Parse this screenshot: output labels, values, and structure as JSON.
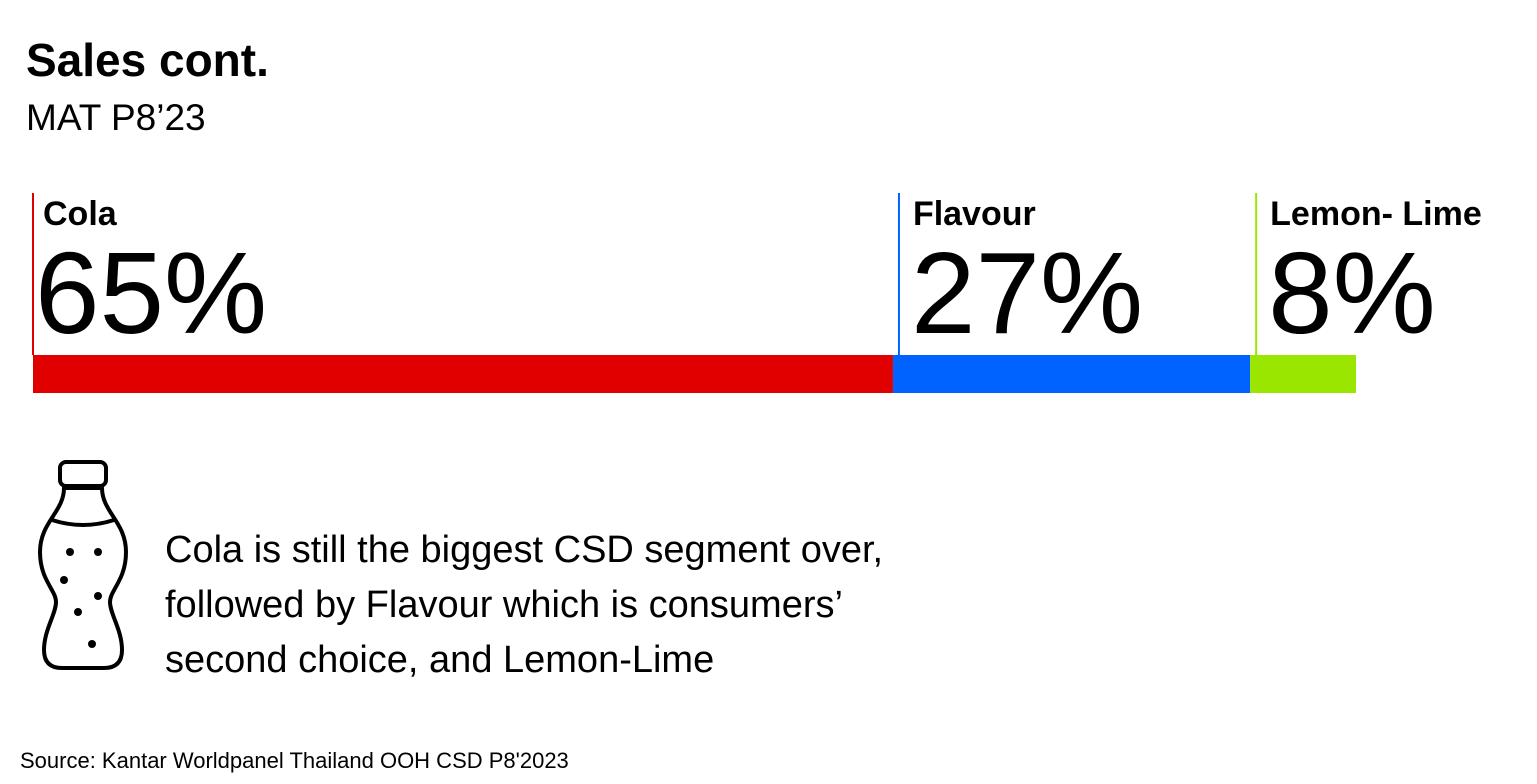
{
  "chart_data": {
    "type": "bar",
    "title": "Sales cont.",
    "subtitle": "MAT P8’23",
    "categories": [
      "Cola",
      "Flavour",
      "Lemon- Lime"
    ],
    "values": [
      65,
      27,
      8
    ],
    "value_labels": [
      "65%",
      "27%",
      "8%"
    ],
    "colors": [
      "#e00000",
      "#0062ff",
      "#9be600"
    ],
    "note": [
      "Cola is still the biggest CSD segment over,",
      "followed by Flavour which is consumers’",
      "second choice, and Lemon-Lime"
    ],
    "source": "Source: Kantar Worldpanel Thailand OOH CSD P8'2023"
  }
}
